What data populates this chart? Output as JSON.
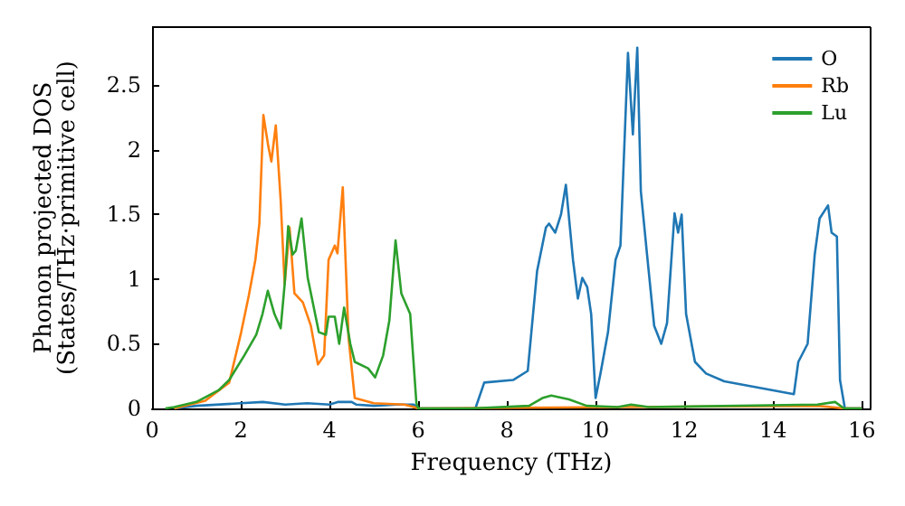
{
  "chart_data": {
    "type": "line",
    "xlabel": "Frequency (THz)",
    "ylabel": "Phonon projected DOS\n(States/THz·primitive cell)",
    "xlim": [
      0,
      16.2
    ],
    "ylim": [
      0,
      2.95
    ],
    "xticks": [
      0,
      2,
      4,
      6,
      8,
      10,
      12,
      14,
      16
    ],
    "yticks": [
      0,
      0.5,
      1,
      1.5,
      2,
      2.5
    ],
    "grid": false,
    "legend": "top right",
    "marker": "none",
    "line_style": "solid",
    "series": [
      {
        "name": "O",
        "color": "#1f77b4",
        "x": [
          0.5,
          1,
          2,
          2.5,
          3,
          3.5,
          4,
          4.2,
          4.5,
          4.6,
          5,
          5.5,
          5.9,
          6,
          7.29,
          7.49,
          8.14,
          8.47,
          8.68,
          8.88,
          8.95,
          9.09,
          9.22,
          9.33,
          9.49,
          9.6,
          9.7,
          9.81,
          9.9,
          10,
          10.11,
          10.28,
          10.45,
          10.56,
          10.73,
          10.84,
          10.94,
          11.02,
          11.16,
          11.32,
          11.48,
          11.61,
          11.78,
          11.86,
          11.94,
          12.04,
          12.24,
          12.49,
          12.9,
          14.47,
          14.57,
          14.78,
          14.94,
          15.05,
          15.24,
          15.32,
          15.44,
          15.51,
          15.62,
          16
        ],
        "values": [
          0,
          0.02,
          0.04,
          0.05,
          0.03,
          0.04,
          0.03,
          0.05,
          0.05,
          0.03,
          0.02,
          0.03,
          0.03,
          0,
          0,
          0.2,
          0.22,
          0.29,
          1.06,
          1.4,
          1.43,
          1.36,
          1.5,
          1.73,
          1.15,
          0.85,
          1.01,
          0.94,
          0.73,
          0.08,
          0.27,
          0.59,
          1.15,
          1.26,
          2.75,
          2.12,
          2.79,
          1.68,
          1.19,
          0.64,
          0.5,
          0.66,
          1.51,
          1.36,
          1.5,
          0.73,
          0.36,
          0.27,
          0.21,
          0.11,
          0.36,
          0.5,
          1.19,
          1.47,
          1.57,
          1.36,
          1.33,
          0.22,
          0,
          0
        ]
      },
      {
        "name": "Rb",
        "color": "#ff7f0e",
        "x": [
          0.5,
          1.2,
          1.74,
          2.01,
          2.18,
          2.33,
          2.42,
          2.51,
          2.62,
          2.69,
          2.79,
          2.9,
          2.99,
          3.1,
          3.21,
          3.4,
          3.58,
          3.74,
          3.88,
          3.98,
          4.12,
          4.18,
          4.3,
          4.43,
          4.57,
          5,
          5.69,
          5.9,
          6,
          10.5,
          15,
          15.6,
          16
        ],
        "values": [
          0,
          0.06,
          0.2,
          0.59,
          0.87,
          1.15,
          1.43,
          2.27,
          2.03,
          1.91,
          2.19,
          1.61,
          0.96,
          1.4,
          0.89,
          0.82,
          0.64,
          0.34,
          0.41,
          1.15,
          1.26,
          1.2,
          1.71,
          0.55,
          0.08,
          0.04,
          0.03,
          0.01,
          0,
          0.01,
          0.02,
          0,
          0
        ]
      },
      {
        "name": "Lu",
        "color": "#2ca02c",
        "x": [
          0.3,
          0.5,
          1,
          1.5,
          1.74,
          2.08,
          2.35,
          2.49,
          2.61,
          2.76,
          2.9,
          2.99,
          3.07,
          3.17,
          3.24,
          3.37,
          3.51,
          3.76,
          3.92,
          3.98,
          4.12,
          4.22,
          4.33,
          4.47,
          4.57,
          4.87,
          5.03,
          5.21,
          5.35,
          5.49,
          5.62,
          5.82,
          5.96,
          6,
          7.2,
          8.5,
          8.8,
          9,
          9.4,
          9.8,
          10.5,
          10.8,
          11.2,
          15,
          15.4,
          15.6,
          16
        ],
        "values": [
          0,
          0.01,
          0.05,
          0.14,
          0.22,
          0.41,
          0.57,
          0.73,
          0.91,
          0.73,
          0.62,
          0.96,
          1.41,
          1.19,
          1.22,
          1.47,
          1.01,
          0.59,
          0.57,
          0.71,
          0.71,
          0.5,
          0.78,
          0.5,
          0.36,
          0.31,
          0.24,
          0.41,
          0.68,
          1.3,
          0.89,
          0.73,
          0.04,
          0,
          0,
          0.02,
          0.08,
          0.1,
          0.07,
          0.02,
          0.01,
          0.03,
          0.01,
          0.03,
          0.05,
          0,
          0
        ]
      }
    ]
  }
}
